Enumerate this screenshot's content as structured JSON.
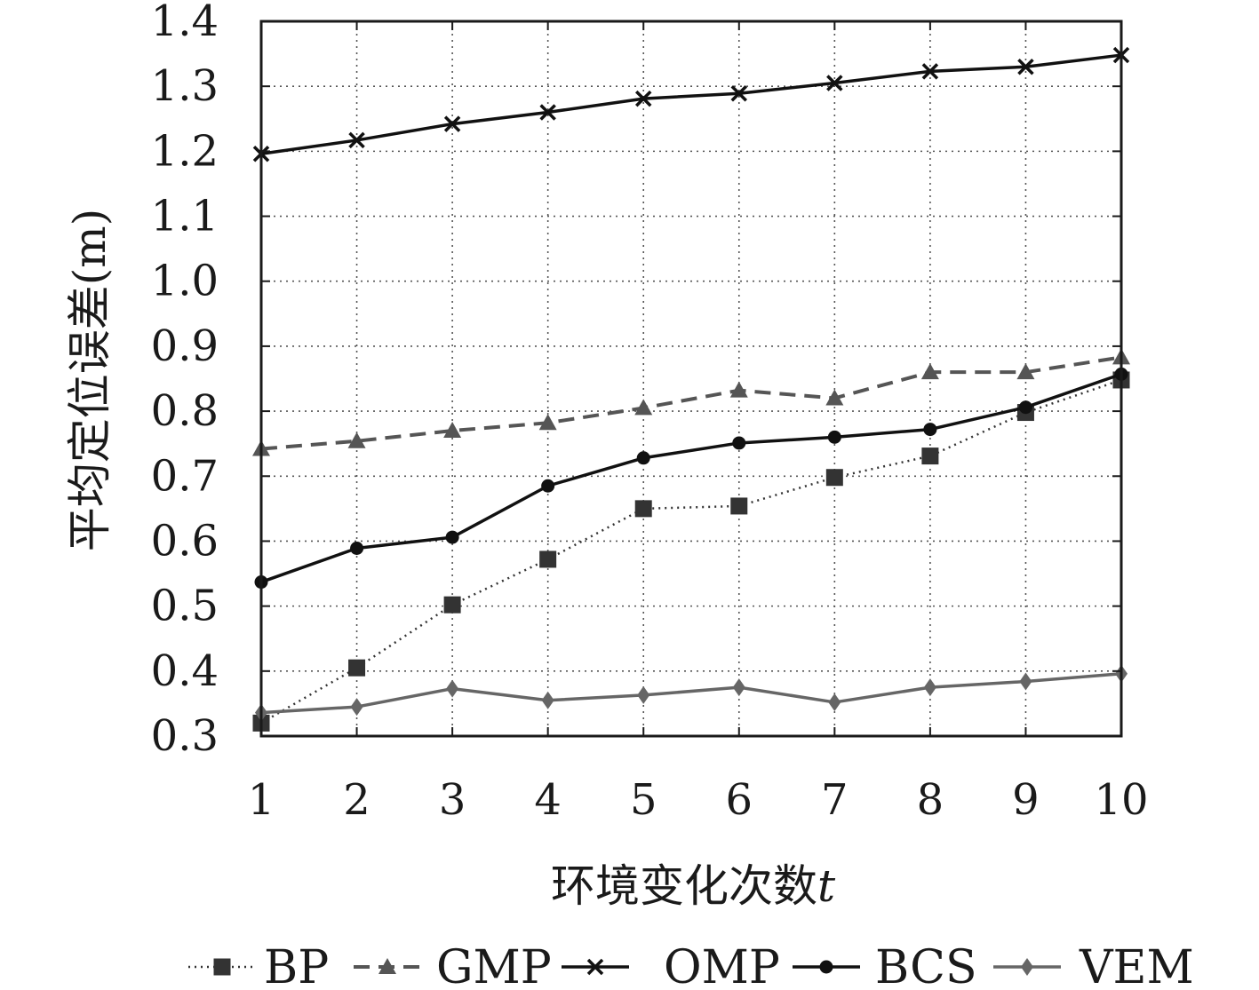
{
  "chart_data": {
    "type": "line",
    "xlabel": "环境变化次数",
    "xlabel_var": "t",
    "ylabel": "平均定位误差(m)",
    "x": [
      1,
      2,
      3,
      4,
      5,
      6,
      7,
      8,
      9,
      10
    ],
    "xlim": [
      1,
      10
    ],
    "ylim": [
      0.3,
      1.4
    ],
    "yticks": [
      "0.3",
      "0.4",
      "0.5",
      "0.6",
      "0.7",
      "0.8",
      "0.9",
      "1.0",
      "1.1",
      "1.2",
      "1.3",
      "1.4"
    ],
    "xticks": [
      "1",
      "2",
      "3",
      "4",
      "5",
      "6",
      "7",
      "8",
      "9",
      "10"
    ],
    "grid": true,
    "legend_position": "bottom",
    "series": [
      {
        "name": "BP",
        "values": [
          0.32,
          0.405,
          0.502,
          0.572,
          0.65,
          0.654,
          0.698,
          0.731,
          0.798,
          0.848
        ],
        "color": "#333333",
        "line": "dotted",
        "marker": "square"
      },
      {
        "name": "GMP",
        "values": [
          0.742,
          0.754,
          0.77,
          0.782,
          0.805,
          0.832,
          0.82,
          0.86,
          0.86,
          0.883
        ],
        "color": "#555555",
        "line": "dashed",
        "marker": "triangle"
      },
      {
        "name": "OMP",
        "values": [
          1.196,
          1.217,
          1.242,
          1.26,
          1.281,
          1.289,
          1.305,
          1.323,
          1.33,
          1.348
        ],
        "color": "#111111",
        "line": "solid",
        "marker": "x"
      },
      {
        "name": "BCS",
        "values": [
          0.537,
          0.589,
          0.606,
          0.685,
          0.728,
          0.751,
          0.76,
          0.772,
          0.806,
          0.857
        ],
        "color": "#111111",
        "line": "solid",
        "marker": "dot"
      },
      {
        "name": "VEM",
        "values": [
          0.336,
          0.345,
          0.373,
          0.355,
          0.363,
          0.375,
          0.352,
          0.375,
          0.384,
          0.396
        ],
        "color": "#666666",
        "line": "solid",
        "marker": "diamond"
      }
    ]
  }
}
